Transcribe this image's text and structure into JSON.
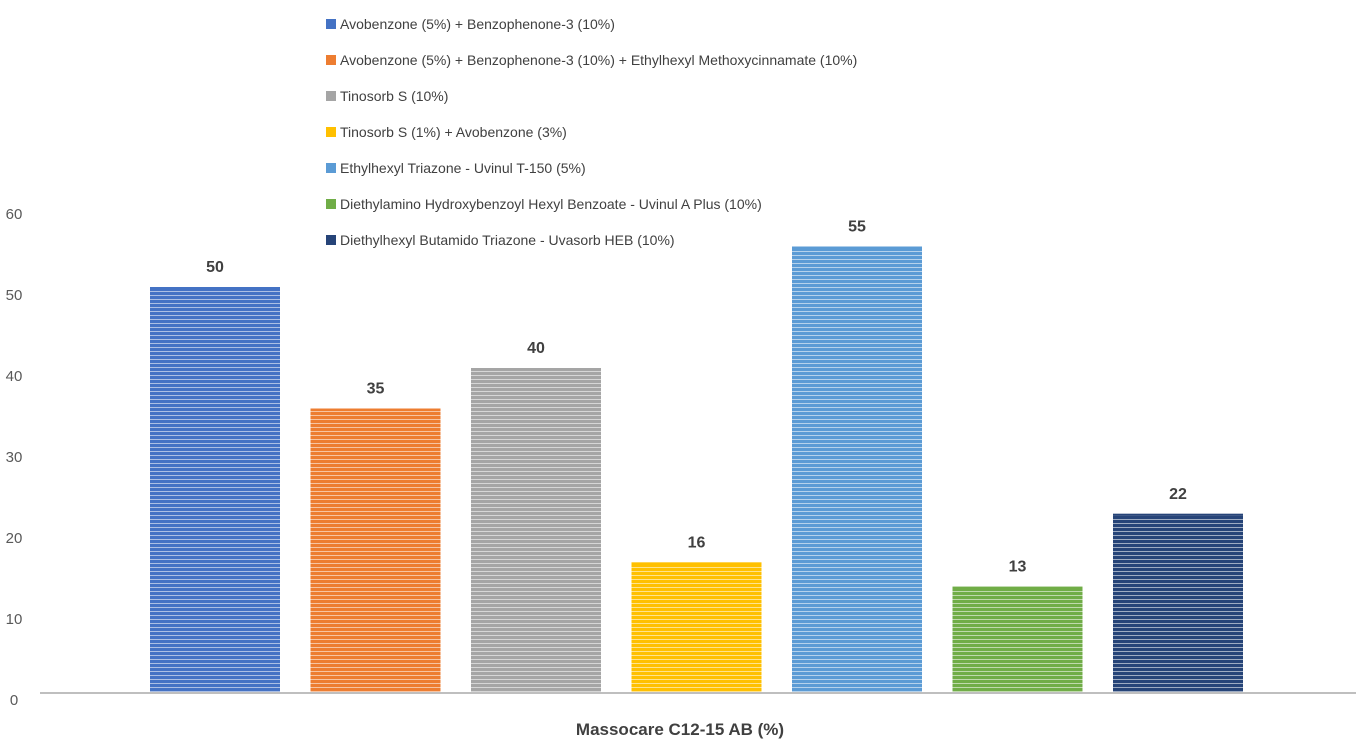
{
  "chart_data": {
    "type": "bar",
    "title": "",
    "xlabel": "Massocare C12-15 AB (%)",
    "ylabel": "",
    "ylim": [
      0,
      60
    ],
    "yticks": [
      0,
      10,
      20,
      30,
      40,
      50,
      60
    ],
    "grid": false,
    "legend_position": "top",
    "categories": [
      "Massocare C12-15 AB (%)"
    ],
    "series": [
      {
        "name": "Avobenzone (5%) + Benzophenone-3 (10%)",
        "values": [
          50
        ],
        "color": "#4472C4"
      },
      {
        "name": "Avobenzone (5%) + Benzophenone-3 (10%) + Ethylhexyl Methoxycinnamate (10%)",
        "values": [
          35
        ],
        "color": "#ED7D31"
      },
      {
        "name": "Tinosorb S (10%)",
        "values": [
          40
        ],
        "color": "#A5A5A5"
      },
      {
        "name": "Tinosorb S (1%) + Avobenzone (3%)",
        "values": [
          16
        ],
        "color": "#FFC000"
      },
      {
        "name": "Ethylhexyl Triazone - Uvinul T-150 (5%)",
        "values": [
          55
        ],
        "color": "#5B9BD5"
      },
      {
        "name": "Diethylamino Hydroxybenzoyl Hexyl Benzoate - Uvinul A Plus (10%)",
        "values": [
          13
        ],
        "color": "#70AD47"
      },
      {
        "name": "Diethylhexyl Butamido Triazone - Uvasorb HEB (10%)",
        "values": [
          22
        ],
        "color": "#264478"
      }
    ],
    "data_labels": [
      "50",
      "35",
      "40",
      "16",
      "55",
      "13",
      "22"
    ]
  }
}
